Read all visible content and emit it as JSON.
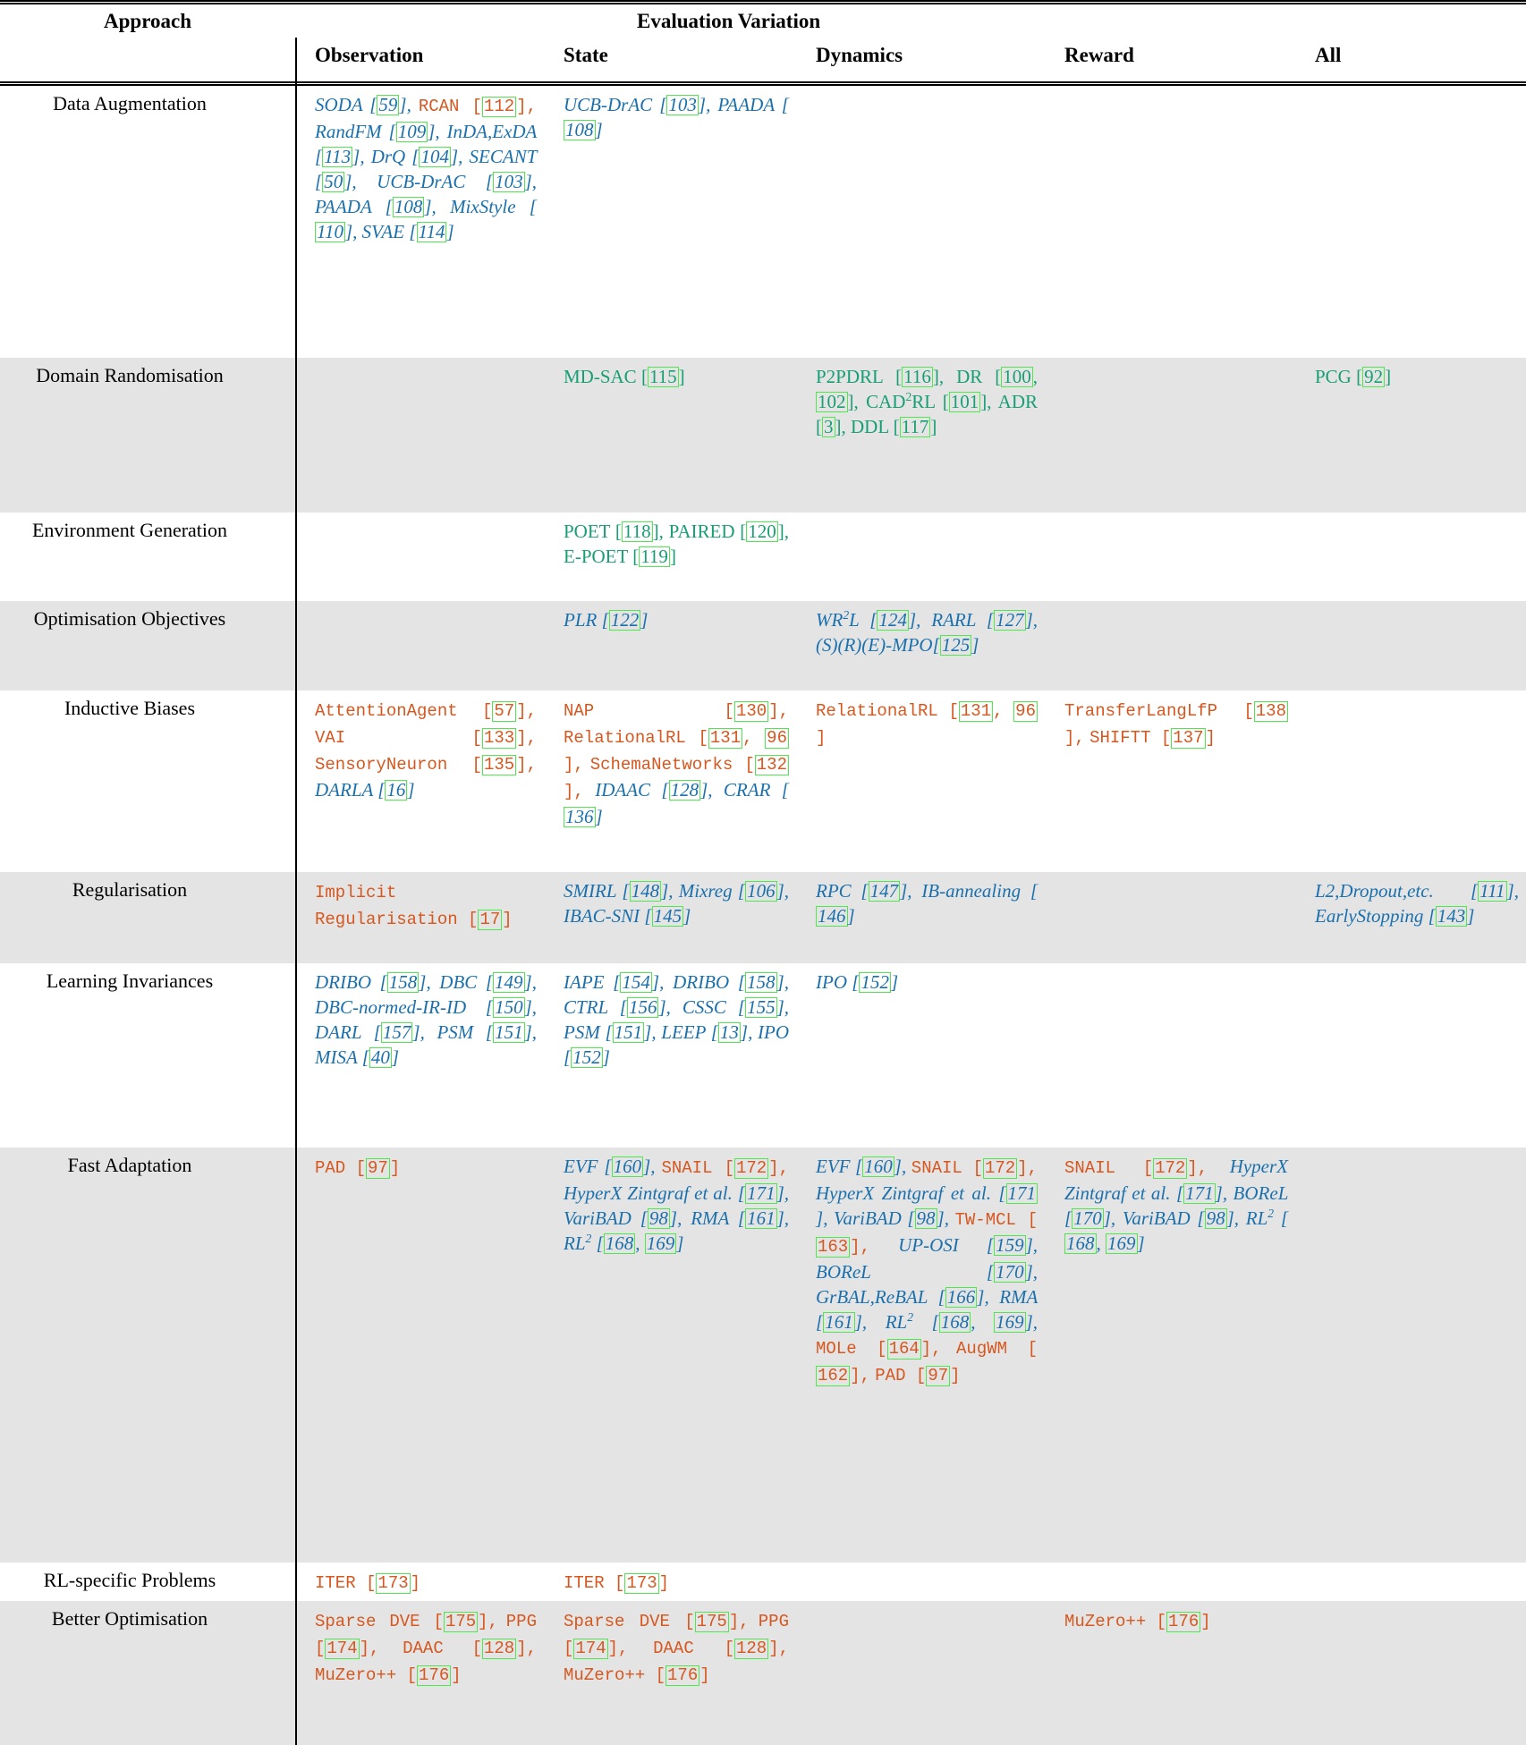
{
  "colors": {
    "blue": "#1a70ad",
    "orange": "#d6571f",
    "green": "#189e74",
    "cite_box": "#50e650",
    "row_shade": "#e4e4e4"
  },
  "table": {
    "header": {
      "approach": "Approach",
      "group": "Evaluation Variation",
      "columns": [
        "Observation",
        "State",
        "Dynamics",
        "Reward",
        "All"
      ]
    },
    "legend_styles": {
      "b": "blue-italic-serif",
      "o": "orange-monospace",
      "g": "green-serif"
    },
    "rows": [
      {
        "approach": "Data Augmentation",
        "cells": {
          "observation": [
            {
              "n": "SODA",
              "s": "b",
              "r": [
                "59"
              ]
            },
            {
              "n": "RCAN",
              "s": "o",
              "r": [
                "112"
              ]
            },
            {
              "n": "RandFM",
              "s": "b",
              "r": [
                "109"
              ]
            },
            {
              "n": "InDA,ExDA",
              "s": "b",
              "r": [
                "113"
              ]
            },
            {
              "n": "DrQ",
              "s": "b",
              "r": [
                "104"
              ]
            },
            {
              "n": "SECANT",
              "s": "b",
              "r": [
                "50"
              ]
            },
            {
              "n": "UCB-DrAC",
              "s": "b",
              "r": [
                "103"
              ]
            },
            {
              "n": "PAADA",
              "s": "b",
              "r": [
                "108"
              ]
            },
            {
              "n": "MixStyle",
              "s": "b",
              "r": [
                "110"
              ]
            },
            {
              "n": "SVAE",
              "s": "b",
              "r": [
                "114"
              ]
            }
          ],
          "state": [
            {
              "n": "UCB-DrAC",
              "s": "b",
              "r": [
                "103"
              ]
            },
            {
              "n": "PAADA",
              "s": "b",
              "r": [
                "108"
              ]
            }
          ],
          "dynamics": [],
          "reward": [],
          "all": []
        }
      },
      {
        "approach": "Domain Randomisation",
        "cells": {
          "observation": [],
          "state": [
            {
              "n": "MD-SAC",
              "s": "g",
              "r": [
                "115"
              ]
            }
          ],
          "dynamics": [
            {
              "n": "P2PDRL",
              "s": "g",
              "r": [
                "116"
              ]
            },
            {
              "n": "DR",
              "s": "g",
              "r": [
                "100",
                "102"
              ]
            },
            {
              "n": "CAD^2RL",
              "s": "g",
              "r": [
                "101"
              ]
            },
            {
              "n": "ADR",
              "s": "g",
              "r": [
                "3"
              ]
            },
            {
              "n": "DDL",
              "s": "g",
              "r": [
                "117"
              ]
            }
          ],
          "reward": [],
          "all": [
            {
              "n": "PCG",
              "s": "g",
              "r": [
                "92"
              ]
            }
          ]
        }
      },
      {
        "approach": "Environment Generation",
        "cells": {
          "observation": [],
          "state": [
            {
              "n": "POET",
              "s": "g",
              "r": [
                "118"
              ]
            },
            {
              "n": "PAIRED",
              "s": "g",
              "r": [
                "120"
              ]
            },
            {
              "n": "E-POET",
              "s": "g",
              "r": [
                "119"
              ]
            }
          ],
          "dynamics": [],
          "reward": [],
          "all": []
        }
      },
      {
        "approach": "Optimisation Objectives",
        "cells": {
          "observation": [],
          "state": [
            {
              "n": "PLR",
              "s": "b",
              "r": [
                "122"
              ]
            }
          ],
          "dynamics": [
            {
              "n": "WR^2L",
              "s": "b",
              "r": [
                "124"
              ]
            },
            {
              "n": "RARL",
              "s": "b",
              "r": [
                "127"
              ]
            },
            {
              "n": "(S)(R)(E)-MPO",
              "s": "b",
              "r": [
                "125"
              ],
              "nospace": true
            }
          ],
          "reward": [],
          "all": []
        }
      },
      {
        "approach": "Inductive Biases",
        "cells": {
          "observation": [
            {
              "n": "AttentionAgent",
              "s": "o",
              "r": [
                "57"
              ]
            },
            {
              "n": "VAI",
              "s": "o",
              "r": [
                "133"
              ]
            },
            {
              "n": "SensoryNeuron",
              "s": "o",
              "r": [
                "135"
              ]
            },
            {
              "n": "DARLA",
              "s": "b",
              "r": [
                "16"
              ]
            }
          ],
          "state": [
            {
              "n": "NAP",
              "s": "o",
              "r": [
                "130"
              ]
            },
            {
              "n": "RelationalRL",
              "s": "o",
              "r": [
                "131",
                "96"
              ]
            },
            {
              "n": "SchemaNetworks",
              "s": "o",
              "r": [
                "132"
              ]
            },
            {
              "n": "IDAAC",
              "s": "b",
              "r": [
                "128"
              ]
            },
            {
              "n": "CRAR",
              "s": "b",
              "r": [
                "136"
              ]
            }
          ],
          "dynamics": [
            {
              "n": "RelationalRL",
              "s": "o",
              "r": [
                "131",
                "96"
              ]
            }
          ],
          "reward": [
            {
              "n": "TransferLangLfP",
              "s": "o",
              "r": [
                "138"
              ]
            },
            {
              "n": "SHIFTT",
              "s": "o",
              "r": [
                "137"
              ]
            }
          ],
          "all": []
        }
      },
      {
        "approach": "Regularisation",
        "cells": {
          "observation": [
            {
              "n": "Implicit Regularisation",
              "s": "o",
              "r": [
                "17"
              ]
            }
          ],
          "state": [
            {
              "n": "SMIRL",
              "s": "b",
              "r": [
                "148"
              ]
            },
            {
              "n": "Mixreg",
              "s": "b",
              "r": [
                "106"
              ]
            },
            {
              "n": "IBAC-SNI",
              "s": "b",
              "r": [
                "145"
              ]
            }
          ],
          "dynamics": [
            {
              "n": "RPC",
              "s": "b",
              "r": [
                "147"
              ]
            },
            {
              "n": "IB-annealing",
              "s": "b",
              "r": [
                "146"
              ]
            }
          ],
          "reward": [],
          "all": [
            {
              "n": "L2,Dropout,etc.",
              "s": "b",
              "r": [
                "111"
              ]
            },
            {
              "n": "EarlyStopping",
              "s": "b",
              "r": [
                "143"
              ]
            }
          ]
        }
      },
      {
        "approach": "Learning Invariances",
        "cells": {
          "observation": [
            {
              "n": "DRIBO",
              "s": "b",
              "r": [
                "158"
              ]
            },
            {
              "n": "DBC",
              "s": "b",
              "r": [
                "149"
              ]
            },
            {
              "n": "DBC-normed-IR-ID",
              "s": "b",
              "r": [
                "150"
              ]
            },
            {
              "n": "DARL",
              "s": "b",
              "r": [
                "157"
              ]
            },
            {
              "n": "PSM",
              "s": "b",
              "r": [
                "151"
              ]
            },
            {
              "n": "MISA",
              "s": "b",
              "r": [
                "40"
              ]
            }
          ],
          "state": [
            {
              "n": "IAPE",
              "s": "b",
              "r": [
                "154"
              ]
            },
            {
              "n": "DRIBO",
              "s": "b",
              "r": [
                "158"
              ]
            },
            {
              "n": "CTRL",
              "s": "b",
              "r": [
                "156"
              ]
            },
            {
              "n": "CSSC",
              "s": "b",
              "r": [
                "155"
              ]
            },
            {
              "n": "PSM",
              "s": "b",
              "r": [
                "151"
              ]
            },
            {
              "n": "LEEP",
              "s": "b",
              "r": [
                "13"
              ]
            },
            {
              "n": "IPO",
              "s": "b",
              "r": [
                "152"
              ]
            }
          ],
          "dynamics": [
            {
              "n": "IPO",
              "s": "b",
              "r": [
                "152"
              ]
            }
          ],
          "reward": [],
          "all": []
        }
      },
      {
        "approach": "Fast Adaptation",
        "cells": {
          "observation": [
            {
              "n": "PAD",
              "s": "o",
              "r": [
                "97"
              ]
            }
          ],
          "state": [
            {
              "n": "EVF",
              "s": "b",
              "r": [
                "160"
              ]
            },
            {
              "n": "SNAIL",
              "s": "o",
              "r": [
                "172"
              ]
            },
            {
              "n": "HyperX Zintgraf et al.",
              "s": "b",
              "r": [
                "171"
              ]
            },
            {
              "n": "VariBAD",
              "s": "b",
              "r": [
                "98"
              ]
            },
            {
              "n": "RMA",
              "s": "b",
              "r": [
                "161"
              ]
            },
            {
              "n": "RL^2",
              "s": "b",
              "r": [
                "168",
                "169"
              ]
            }
          ],
          "dynamics": [
            {
              "n": "EVF",
              "s": "b",
              "r": [
                "160"
              ]
            },
            {
              "n": "SNAIL",
              "s": "o",
              "r": [
                "172"
              ]
            },
            {
              "n": "HyperX Zintgraf et al.",
              "s": "b",
              "r": [
                "171"
              ]
            },
            {
              "n": "VariBAD",
              "s": "b",
              "r": [
                "98"
              ]
            },
            {
              "n": "TW-MCL",
              "s": "o",
              "r": [
                "163"
              ]
            },
            {
              "n": "UP-OSI",
              "s": "b",
              "r": [
                "159"
              ]
            },
            {
              "n": "BOReL",
              "s": "b",
              "r": [
                "170"
              ]
            },
            {
              "n": "GrBAL,ReBAL",
              "s": "b",
              "r": [
                "166"
              ]
            },
            {
              "n": "RMA",
              "s": "b",
              "r": [
                "161"
              ]
            },
            {
              "n": "RL^2",
              "s": "b",
              "r": [
                "168",
                "169"
              ]
            },
            {
              "n": "MOLe",
              "s": "o",
              "r": [
                "164"
              ]
            },
            {
              "n": "AugWM",
              "s": "o",
              "r": [
                "162"
              ]
            },
            {
              "n": "PAD",
              "s": "o",
              "r": [
                "97"
              ]
            }
          ],
          "reward": [
            {
              "n": "SNAIL",
              "s": "o",
              "r": [
                "172"
              ]
            },
            {
              "n": "HyperX Zintgraf et al.",
              "s": "b",
              "r": [
                "171"
              ]
            },
            {
              "n": "BOReL",
              "s": "b",
              "r": [
                "170"
              ]
            },
            {
              "n": "VariBAD",
              "s": "b",
              "r": [
                "98"
              ]
            },
            {
              "n": "RL^2",
              "s": "b",
              "r": [
                "168",
                "169"
              ]
            }
          ],
          "all": []
        }
      },
      {
        "approach": "RL-specific Problems",
        "cells": {
          "observation": [
            {
              "n": "ITER",
              "s": "o",
              "r": [
                "173"
              ]
            }
          ],
          "state": [
            {
              "n": "ITER",
              "s": "o",
              "r": [
                "173"
              ]
            }
          ],
          "dynamics": [],
          "reward": [],
          "all": []
        }
      },
      {
        "approach": "Better Optimisation",
        "cells": {
          "observation": [
            {
              "n": "Sparse DVE",
              "s": "o",
              "r": [
                "175"
              ]
            },
            {
              "n": "PPG",
              "s": "o",
              "r": [
                "174"
              ]
            },
            {
              "n": "DAAC",
              "s": "o",
              "r": [
                "128"
              ]
            },
            {
              "n": "MuZero++",
              "s": "o",
              "r": [
                "176"
              ]
            }
          ],
          "state": [
            {
              "n": "Sparse DVE",
              "s": "o",
              "r": [
                "175"
              ]
            },
            {
              "n": "PPG",
              "s": "o",
              "r": [
                "174"
              ]
            },
            {
              "n": "DAAC",
              "s": "o",
              "r": [
                "128"
              ]
            },
            {
              "n": "MuZero++",
              "s": "o",
              "r": [
                "176"
              ]
            }
          ],
          "dynamics": [],
          "reward": [
            {
              "n": "MuZero++",
              "s": "o",
              "r": [
                "176"
              ]
            }
          ],
          "all": []
        }
      }
    ]
  }
}
